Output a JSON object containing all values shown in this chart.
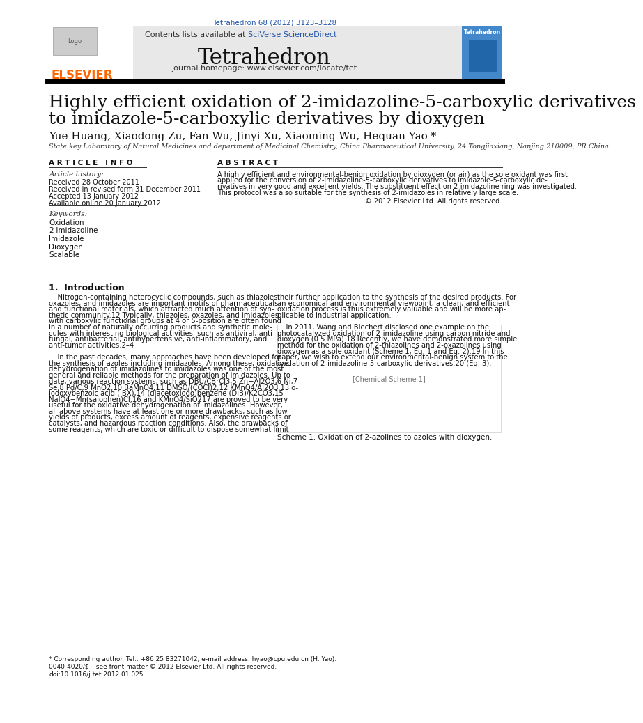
{
  "bg_color": "#ffffff",
  "journal_ref": "Tetrahedron 68 (2012) 3123–3128",
  "journal_ref_color": "#2255aa",
  "journal_name": "Tetrahedron",
  "journal_url": "journal homepage: www.elsevier.com/locate/tet",
  "contents_text": "Contents lists available at ",
  "sciverse_text": "SciVerse ScienceDirect",
  "header_bg": "#e8e8e8",
  "elsevier_color": "#ff6600",
  "title_line1": "Highly efficient oxidation of 2-imidazoline-5-carboxylic derivatives",
  "title_line2": "to imidazole-5-carboxylic derivatives by dioxygen",
  "authors": "Yue Huang, Xiaodong Zu, Fan Wu, Jinyi Xu, Xiaoming Wu, Hequan Yao *",
  "affiliation": "State key Laboratory of Natural Medicines and department of Medicinal Chemistry, China Pharmaceutical University, 24 Tongjiaxiang, Nanjing 210009, PR China",
  "article_info_label": "A R T I C L E   I N F O",
  "abstract_label": "A B S T R A C T",
  "article_history_label": "Article history:",
  "received": "Received 28 October 2011",
  "received_revised": "Received in revised form 31 December 2011",
  "accepted": "Accepted 13 January 2012",
  "available": "Available online 20 January 2012",
  "keywords_label": "Keywords:",
  "keywords": [
    "Oxidation",
    "2-Imidazoline",
    "Imidazole",
    "Dioxygen",
    "Scalable"
  ],
  "abstract_lines": [
    "A highly efficient and environmental-benign oxidation by dioxygen (or air) as the sole oxidant was first",
    "applied for the conversion of 2-imidazoline-5-carboxylic derivatives to imidazole-5-carboxylic de-",
    "rivatives in very good and excellent yields. The substituent effect on 2-imidazoline ring was investigated.",
    "This protocol was also suitable for the synthesis of 2-imidazoles in relatively large scale."
  ],
  "copyright": "© 2012 Elsevier Ltd. All rights reserved.",
  "intro_label": "1.  Introduction",
  "col1_lines": [
    "    Nitrogen-containing heterocyclic compounds, such as thiazoles,",
    "oxazoles, and imidazoles are important motifs of pharmaceuticals",
    "and functional materials, which attracted much attention of syn-",
    "thetic community.12 Typically, thiazoles, oxazoles, and imidazoles",
    "with carboxylic functional groups at 4 or 5-position are often found",
    "in a number of naturally occurring products and synthetic mole-",
    "cules with interesting biological activities, such as antiviral, anti-",
    "fungal, antibacterial, antihypertensive, anti-inflammatory, and",
    "anti-tumor activities.2–4",
    "",
    "    In the past decades, many approaches have been developed for",
    "the synthesis of azoles including imidazoles. Among these, oxidative",
    "dehydrogenation of imidazolines to imidazoles was one of the most",
    "general and reliable methods for the preparation of imidazoles. Up to",
    "date, various reaction systems, such as DBU/CBrCl3,5 Zn−Al2O3,6 Ni,7",
    "Se,8 Pd/C,9 MnO2,10 BaMnO4,11 DMSO/(COCl)2,12 KMnO4/Al2O3,13 o-",
    "iodoxybenzoic acid (IBX),14 (diacetoxiodo)benzene (DIB)/K2CO3,15",
    "NaIO4−Mn(salophen)Cl,16 and KMnO4/SiO217 are proved to be very",
    "useful for the oxidative dehydrogenation of imidazolines. However,",
    "all above systems have at least one or more drawbacks, such as low",
    "yields of products, excess amount of reagents, expensive reagents or",
    "catalysts, and hazardous reaction conditions. Also, the drawbacks of",
    "some reagents, which are toxic or difficult to dispose somewhat limit"
  ],
  "col2_lines": [
    "their further application to the synthesis of the desired products. For",
    "an economical and environmental viewpoint, a clean, and efficient",
    "oxidation process is thus extremely valuable and will be more ap-",
    "plicable to industrial application.",
    "",
    "    In 2011, Wang and Blechert disclosed one example on the",
    "photocatalyzed oxidation of 2-imidazoline using carbon nitride and",
    "dioxygen (0.5 MPa).18 Recently, we have demonstrated more simple",
    "method for the oxidation of 2-thiazolines and 2-oxazolines using",
    "dioxygen as a sole oxidant (Scheme 1, Eq. 1 and Eq. 2).19 In this",
    "paper, we wish to extend our environmental-benign system to the",
    "oxidation of 2-imidazoline-5-carboxylic derivatives.20 (Eq. 3)."
  ],
  "scheme_caption": "Scheme 1. Oxidation of 2-azolines to azoles with dioxygen.",
  "footnote_star": "* Corresponding author. Tel.: +86 25 83271042; e-mail address: hyao@cpu.edu.cn (H. Yao).",
  "footnote_issn1": "0040-4020/$ – see front matter © 2012 Elsevier Ltd. All rights reserved.",
  "footnote_issn2": "doi:10.1016/j.tet.2012.01.025"
}
